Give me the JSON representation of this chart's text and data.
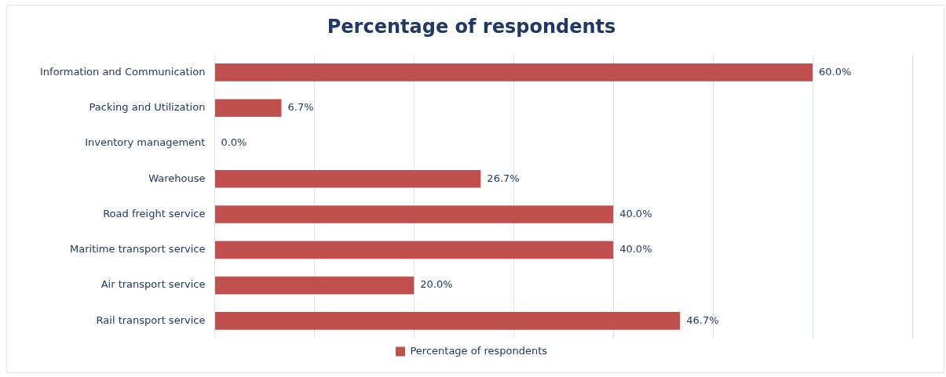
{
  "chart_data": {
    "type": "bar",
    "orientation": "horizontal",
    "title": "Percentage of respondents",
    "categories": [
      "Information and Communication",
      "Packing and Utilization",
      "Inventory management",
      "Warehouse",
      "Road freight service",
      "Maritime transport service",
      "Air transport service",
      "Rail transport service"
    ],
    "series": [
      {
        "name": "Percentage of respondents",
        "color": "#c0504d",
        "values": [
          60.0,
          6.7,
          0.0,
          26.7,
          40.0,
          40.0,
          20.0,
          46.7
        ],
        "value_labels": [
          "60.0%",
          "6.7%",
          "0.0%",
          "26.7%",
          "40.0%",
          "40.0%",
          "20.0%",
          "46.7%"
        ]
      }
    ],
    "xlim": [
      0,
      70
    ],
    "xticks": [
      {
        "value": 0,
        "label": null
      },
      {
        "value": 10,
        "label": null
      },
      {
        "value": 20,
        "label": null
      },
      {
        "value": 30,
        "label": null
      },
      {
        "value": 40,
        "label": null
      },
      {
        "value": 50,
        "label": null
      },
      {
        "value": 60,
        "label": null
      },
      {
        "value": 70,
        "label": null
      }
    ],
    "grid": "x",
    "legend": "bottom",
    "tick_labels": "y"
  }
}
